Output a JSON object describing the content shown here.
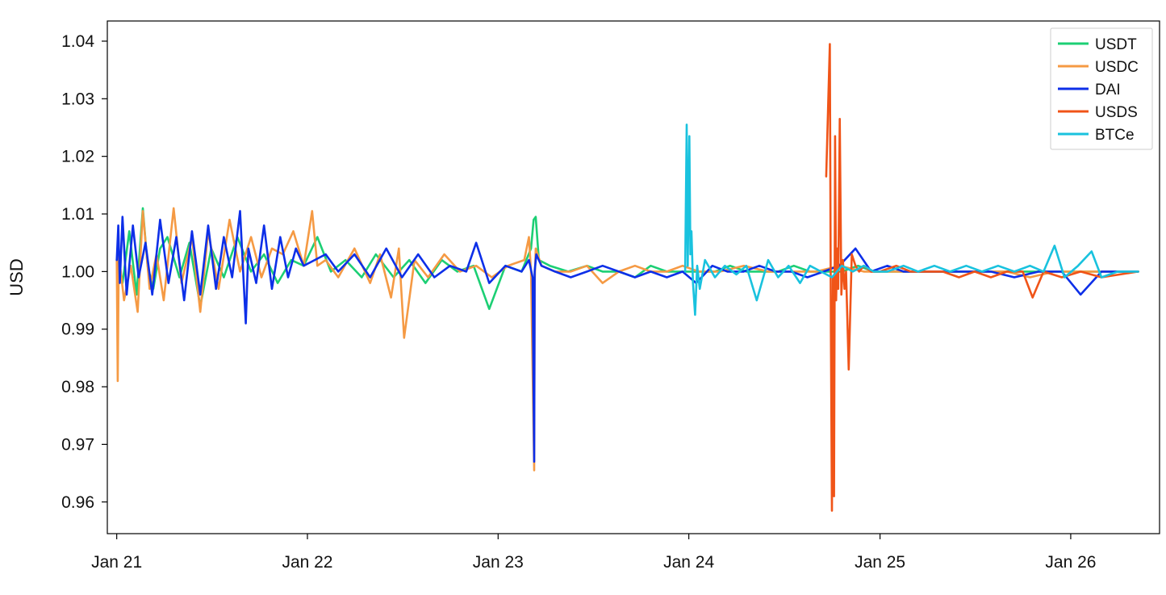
{
  "chart_data": {
    "type": "line",
    "title": "",
    "xlabel": "",
    "ylabel": "USD",
    "ylim": [
      0.9545,
      1.0435
    ],
    "xlim": [
      "2020-12-14",
      "2026-06-20"
    ],
    "x_ticks": [
      {
        "date": "2021-01-01",
        "label": "Jan 21"
      },
      {
        "date": "2022-01-01",
        "label": "Jan 22"
      },
      {
        "date": "2023-01-01",
        "label": "Jan 23"
      },
      {
        "date": "2024-01-01",
        "label": "Jan 24"
      },
      {
        "date": "2025-01-01",
        "label": "Jan 25"
      },
      {
        "date": "2026-01-01",
        "label": "Jan 26"
      }
    ],
    "y_ticks": [
      {
        "value": 0.96,
        "label": "0.96"
      },
      {
        "value": 0.97,
        "label": "0.97"
      },
      {
        "value": 0.98,
        "label": "0.98"
      },
      {
        "value": 0.99,
        "label": "0.99"
      },
      {
        "value": 1.0,
        "label": "1.00"
      },
      {
        "value": 1.01,
        "label": "1.01"
      },
      {
        "value": 1.02,
        "label": "1.02"
      },
      {
        "value": 1.03,
        "label": "1.03"
      },
      {
        "value": 1.04,
        "label": "1.04"
      }
    ],
    "grid": false,
    "legend_position": "top-right",
    "series": [
      {
        "name": "USDT",
        "color": "#1ccf74",
        "x": [
          "2021-01-01",
          "2021-01-12",
          "2021-01-25",
          "2021-02-08",
          "2021-02-20",
          "2021-03-01",
          "2021-03-12",
          "2021-03-25",
          "2021-04-08",
          "2021-05-01",
          "2021-05-20",
          "2021-06-10",
          "2021-07-01",
          "2021-07-25",
          "2021-08-20",
          "2021-09-15",
          "2021-10-10",
          "2021-11-05",
          "2021-12-01",
          "2021-12-25",
          "2022-01-20",
          "2022-02-15",
          "2022-03-15",
          "2022-04-15",
          "2022-05-12",
          "2022-06-15",
          "2022-07-15",
          "2022-08-15",
          "2022-09-15",
          "2022-10-15",
          "2022-11-15",
          "2022-12-15",
          "2023-01-15",
          "2023-02-15",
          "2023-03-05",
          "2023-03-10",
          "2023-03-14",
          "2023-03-20",
          "2023-04-10",
          "2023-05-15",
          "2023-06-20",
          "2023-07-20",
          "2023-08-20",
          "2023-09-20",
          "2023-10-20",
          "2023-11-20",
          "2023-12-20",
          "2024-01-20",
          "2024-02-20",
          "2024-03-20",
          "2024-04-20",
          "2024-05-20",
          "2024-06-20",
          "2024-07-20",
          "2024-08-20",
          "2024-09-20",
          "2024-10-20",
          "2024-11-20",
          "2024-12-20",
          "2025-01-20",
          "2025-03-01",
          "2025-04-15",
          "2025-06-01",
          "2025-07-15",
          "2025-09-01",
          "2025-10-15",
          "2025-12-01",
          "2026-01-15",
          "2026-03-01",
          "2026-05-10"
        ],
        "values": [
          1.002,
          0.998,
          1.007,
          0.996,
          1.011,
          1.001,
          0.997,
          1.004,
          1.006,
          0.999,
          1.005,
          0.994,
          1.004,
          0.999,
          1.006,
          1.0,
          1.003,
          0.998,
          1.002,
          1.001,
          1.006,
          1.0,
          1.002,
          0.999,
          1.003,
          0.999,
          1.002,
          0.998,
          1.002,
          1.0,
          1.001,
          0.9935,
          1.001,
          1.0,
          1.004,
          1.009,
          1.0095,
          1.002,
          1.001,
          1.0,
          1.001,
          1.0,
          1.0,
          0.999,
          1.001,
          1.0,
          1.0,
          1.0,
          1.0,
          1.001,
          1.0,
          1.0,
          1.0,
          1.001,
          1.0,
          1.0,
          1.0,
          1.001,
          1.0,
          1.0,
          1.0,
          1.0,
          1.0,
          1.0,
          1.0,
          1.0,
          1.0,
          1.0,
          1.0,
          1.0
        ]
      },
      {
        "name": "USDC",
        "color": "#f59a44",
        "x": [
          "2021-01-01",
          "2021-01-03",
          "2021-01-05",
          "2021-01-15",
          "2021-01-28",
          "2021-02-10",
          "2021-02-20",
          "2021-03-05",
          "2021-03-18",
          "2021-04-01",
          "2021-04-20",
          "2021-05-05",
          "2021-05-25",
          "2021-06-10",
          "2021-06-25",
          "2021-07-15",
          "2021-08-05",
          "2021-08-25",
          "2021-09-15",
          "2021-10-05",
          "2021-10-25",
          "2021-11-15",
          "2021-12-05",
          "2021-12-25",
          "2022-01-10",
          "2022-01-20",
          "2022-02-05",
          "2022-03-01",
          "2022-04-01",
          "2022-05-01",
          "2022-05-20",
          "2022-06-10",
          "2022-06-25",
          "2022-07-05",
          "2022-07-25",
          "2022-08-20",
          "2022-09-20",
          "2022-10-20",
          "2022-11-20",
          "2022-12-20",
          "2023-01-20",
          "2023-02-20",
          "2023-03-01",
          "2023-03-05",
          "2023-03-11",
          "2023-03-12",
          "2023-03-14",
          "2023-03-25",
          "2023-04-20",
          "2023-05-20",
          "2023-06-20",
          "2023-07-20",
          "2023-08-20",
          "2023-09-20",
          "2023-10-20",
          "2023-11-20",
          "2023-12-20",
          "2024-01-20",
          "2024-03-01",
          "2024-04-15",
          "2024-06-01",
          "2024-07-15",
          "2024-09-01",
          "2024-10-15",
          "2024-12-01",
          "2025-01-15",
          "2025-03-01",
          "2025-04-15",
          "2025-06-01",
          "2025-07-15",
          "2025-09-01",
          "2025-10-15",
          "2025-12-01",
          "2026-01-15",
          "2026-03-01",
          "2026-05-10"
        ],
        "values": [
          1.002,
          0.981,
          1.003,
          0.995,
          1.001,
          0.993,
          1.0105,
          0.997,
          1.003,
          0.995,
          1.011,
          0.998,
          1.006,
          0.993,
          1.007,
          0.997,
          1.009,
          1.0,
          1.006,
          0.999,
          1.004,
          1.003,
          1.007,
          1.001,
          1.0105,
          1.001,
          1.002,
          0.999,
          1.004,
          0.998,
          1.003,
          0.9955,
          1.004,
          0.9885,
          1.002,
          0.999,
          1.003,
          1.0,
          1.001,
          0.999,
          1.001,
          1.002,
          1.006,
          1.0,
          0.9655,
          0.998,
          1.004,
          1.001,
          1.0,
          1.0,
          1.001,
          0.998,
          1.0,
          1.001,
          1.0,
          1.0,
          1.001,
          1.0,
          1.0,
          1.001,
          1.0,
          1.0,
          1.0,
          1.001,
          1.0,
          1.0,
          1.0,
          1.0,
          1.0,
          1.0,
          1.0,
          0.999,
          1.0,
          1.0,
          1.0,
          1.0
        ]
      },
      {
        "name": "DAI",
        "color": "#0d2fe8",
        "x": [
          "2021-01-01",
          "2021-01-04",
          "2021-01-07",
          "2021-01-12",
          "2021-01-20",
          "2021-02-01",
          "2021-02-12",
          "2021-02-25",
          "2021-03-10",
          "2021-03-25",
          "2021-04-10",
          "2021-04-25",
          "2021-05-10",
          "2021-05-25",
          "2021-06-10",
          "2021-06-25",
          "2021-07-10",
          "2021-07-25",
          "2021-08-10",
          "2021-08-25",
          "2021-09-05",
          "2021-09-10",
          "2021-09-25",
          "2021-10-10",
          "2021-10-25",
          "2021-11-10",
          "2021-11-25",
          "2021-12-10",
          "2021-12-25",
          "2022-01-15",
          "2022-02-05",
          "2022-03-01",
          "2022-04-01",
          "2022-05-01",
          "2022-06-01",
          "2022-07-01",
          "2022-08-01",
          "2022-09-01",
          "2022-10-01",
          "2022-11-01",
          "2022-11-20",
          "2022-12-15",
          "2023-01-15",
          "2023-02-15",
          "2023-03-01",
          "2023-03-08",
          "2023-03-11",
          "2023-03-12",
          "2023-03-15",
          "2023-03-25",
          "2023-04-20",
          "2023-05-20",
          "2023-06-20",
          "2023-07-20",
          "2023-08-20",
          "2023-09-20",
          "2023-10-20",
          "2023-11-20",
          "2023-12-20",
          "2024-01-15",
          "2024-02-15",
          "2024-03-15",
          "2024-04-15",
          "2024-05-15",
          "2024-06-15",
          "2024-07-15",
          "2024-08-15",
          "2024-09-15",
          "2024-10-15",
          "2024-11-15",
          "2024-12-15",
          "2025-01-15",
          "2025-02-15",
          "2025-03-15",
          "2025-05-01",
          "2025-06-15",
          "2025-08-01",
          "2025-09-15",
          "2025-11-01",
          "2025-12-15",
          "2026-01-20",
          "2026-03-01",
          "2026-05-10"
        ],
        "values": [
          1.002,
          1.008,
          0.998,
          1.0095,
          0.996,
          1.008,
          0.999,
          1.005,
          0.996,
          1.009,
          0.998,
          1.006,
          0.995,
          1.007,
          0.996,
          1.008,
          0.997,
          1.006,
          0.999,
          1.0105,
          0.991,
          1.004,
          0.998,
          1.008,
          0.997,
          1.006,
          0.999,
          1.004,
          1.001,
          1.002,
          1.003,
          1.0,
          1.003,
          0.999,
          1.004,
          0.999,
          1.003,
          0.999,
          1.001,
          1.0,
          1.005,
          0.998,
          1.001,
          1.0,
          1.002,
          0.999,
          0.967,
          1.0,
          1.003,
          1.001,
          1.0,
          0.999,
          1.0,
          1.001,
          1.0,
          0.999,
          1.0,
          0.999,
          1.0,
          0.998,
          1.001,
          1.0,
          1.0,
          1.001,
          1.0,
          1.0,
          0.999,
          1.0,
          1.001,
          1.004,
          1.0,
          1.001,
          1.0,
          1.0,
          1.0,
          1.0,
          1.0,
          0.999,
          1.0,
          1.0,
          0.996,
          1.0,
          1.0
        ]
      },
      {
        "name": "USDS",
        "color": "#f05418",
        "x": [
          "2024-09-20",
          "2024-09-27",
          "2024-09-29",
          "2024-10-01",
          "2024-10-03",
          "2024-10-05",
          "2024-10-07",
          "2024-10-09",
          "2024-10-11",
          "2024-10-13",
          "2024-10-16",
          "2024-10-19",
          "2024-10-22",
          "2024-10-25",
          "2024-10-28",
          "2024-11-02",
          "2024-11-08",
          "2024-11-15",
          "2024-11-22",
          "2024-12-01",
          "2024-12-15",
          "2025-01-01",
          "2025-02-01",
          "2025-03-01",
          "2025-04-01",
          "2025-05-01",
          "2025-06-01",
          "2025-07-01",
          "2025-08-01",
          "2025-09-01",
          "2025-10-01",
          "2025-10-20",
          "2025-11-10",
          "2025-12-15",
          "2026-01-20",
          "2026-03-01",
          "2026-05-10"
        ],
        "values": [
          1.0165,
          1.0395,
          0.99,
          0.9585,
          0.999,
          0.961,
          1.0235,
          0.995,
          1.004,
          0.997,
          1.0265,
          0.996,
          1.002,
          0.997,
          1.0,
          0.983,
          1.003,
          1.001,
          1.0,
          1.001,
          1.0,
          1.0,
          1.001,
          1.0,
          1.0,
          1.0,
          0.999,
          1.0,
          0.999,
          1.0,
          1.0,
          0.9955,
          1.0,
          0.999,
          1.0,
          0.999,
          1.0
        ]
      },
      {
        "name": "BTCe",
        "color": "#19c2de",
        "x": [
          "2023-12-25",
          "2023-12-28",
          "2023-12-30",
          "2024-01-02",
          "2024-01-04",
          "2024-01-06",
          "2024-01-09",
          "2024-01-13",
          "2024-01-17",
          "2024-01-22",
          "2024-02-01",
          "2024-02-20",
          "2024-03-10",
          "2024-04-01",
          "2024-04-20",
          "2024-05-10",
          "2024-06-01",
          "2024-06-20",
          "2024-07-10",
          "2024-08-01",
          "2024-08-20",
          "2024-09-10",
          "2024-10-01",
          "2024-10-20",
          "2024-11-10",
          "2024-12-01",
          "2024-12-20",
          "2025-01-15",
          "2025-02-15",
          "2025-03-15",
          "2025-04-15",
          "2025-05-15",
          "2025-06-15",
          "2025-07-15",
          "2025-08-15",
          "2025-09-15",
          "2025-10-15",
          "2025-11-10",
          "2025-12-01",
          "2025-12-20",
          "2026-01-15",
          "2026-02-10",
          "2026-03-01",
          "2026-04-01",
          "2026-05-10"
        ],
        "values": [
          1.0,
          1.0255,
          1.001,
          1.0235,
          1.003,
          1.007,
          0.998,
          0.9925,
          1.001,
          0.997,
          1.002,
          0.999,
          1.001,
          0.9995,
          1.001,
          0.995,
          1.002,
          0.999,
          1.001,
          0.998,
          1.001,
          1.0,
          0.999,
          1.001,
          1.0,
          1.001,
          1.0,
          1.0,
          1.001,
          1.0,
          1.001,
          1.0,
          1.001,
          1.0,
          1.001,
          1.0,
          1.001,
          1.0,
          1.0045,
          0.999,
          1.001,
          1.0035,
          0.999,
          1.0,
          1.0
        ]
      }
    ]
  }
}
